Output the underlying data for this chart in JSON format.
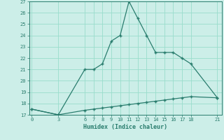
{
  "xlabel": "Humidex (Indice chaleur)",
  "line1_x": [
    0,
    3,
    6,
    7,
    8,
    9,
    10,
    11,
    12,
    13,
    14,
    15,
    16,
    17,
    18,
    21
  ],
  "line1_y": [
    17.5,
    17.0,
    21.0,
    21.0,
    21.5,
    23.5,
    24.0,
    27.0,
    25.5,
    24.0,
    22.5,
    22.5,
    22.5,
    22.0,
    21.5,
    18.5
  ],
  "line2_x": [
    0,
    3,
    6,
    7,
    8,
    9,
    10,
    11,
    12,
    13,
    14,
    15,
    16,
    17,
    18,
    21
  ],
  "line2_y": [
    17.5,
    17.0,
    17.4,
    17.5,
    17.6,
    17.7,
    17.8,
    17.9,
    18.0,
    18.1,
    18.2,
    18.3,
    18.4,
    18.5,
    18.6,
    18.5
  ],
  "color": "#2a7d6e",
  "bg_color": "#cceee8",
  "grid_color": "#99ddcc",
  "ylim": [
    17,
    27
  ],
  "yticks": [
    17,
    18,
    19,
    20,
    21,
    22,
    23,
    24,
    25,
    26,
    27
  ],
  "xticks": [
    0,
    3,
    6,
    7,
    8,
    9,
    10,
    11,
    12,
    13,
    14,
    15,
    16,
    17,
    18,
    21
  ],
  "xlim": [
    -0.3,
    21.5
  ],
  "marker": "+"
}
